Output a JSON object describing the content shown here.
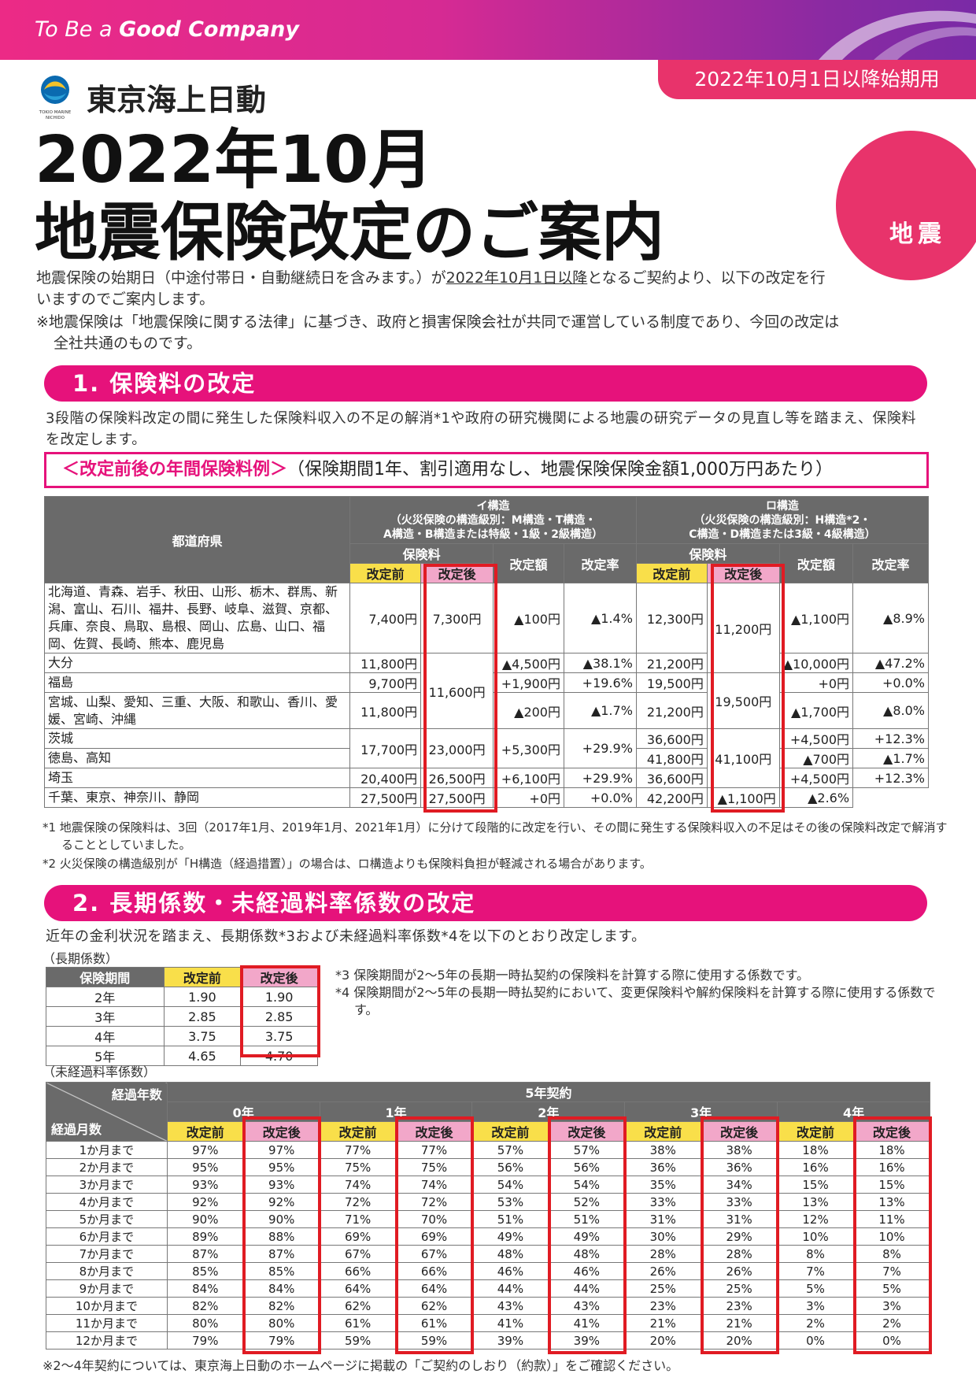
{
  "header": {
    "tagline_pre": "To Be a ",
    "tagline_bold": "Good Company",
    "date_badge": "2022年10月1日以降始期用",
    "company": "東京海上日動",
    "logo_text1": "TOKIO MARINE",
    "logo_text2": "NICHIDO",
    "title_line1": "2022年10月",
    "title_line2": "地震保険改定のご案内",
    "circle_label": "地震"
  },
  "intro": {
    "p1_a": "地震保険の始期日（中途付帯日・自動継続日を含みます。）が",
    "p1_u": "2022年10月1日以降",
    "p1_b": "となるご契約より、以下の改定を行いますのでご案内します。",
    "p2": "※地震保険は「地震保険に関する法律」に基づき、政府と損害保険会社が共同で運営している制度であり、今回の改定は全社共通のものです。"
  },
  "section1": {
    "title": "1. 保険料の改定",
    "body": "3段階の保険料改定の間に発生した保険料収入の不足の解消*1や政府の研究機関による地震の研究データの見直し等を踏まえ、保険料を改定します。",
    "box_pink": "＜改定前後の年間保険料例＞",
    "box_rest": "（保険期間1年、割引適用なし、地震保険保険金額1,000万円あたり）",
    "headers": {
      "pref": "都道府県",
      "i_struct": "イ構造",
      "i_sub1": "（火災保険の構造級別：M構造・T構造・",
      "i_sub2": "A構造・B構造または特級・1級・2級構造）",
      "ro_struct": "ロ構造",
      "ro_sub1": "（火災保険の構造級別：H構造*2・",
      "ro_sub2": "C構造・D構造または3級・4級構造）",
      "premium": "保険料",
      "before": "改定前",
      "after": "改定後",
      "amount": "改定額",
      "rate": "改定率"
    },
    "rows": [
      {
        "pref": "北海道、青森、岩手、秋田、山形、栃木、群馬、新潟、富山、石川、福井、長野、岐阜、滋賀、京都、兵庫、奈良、鳥取、島根、岡山、広島、山口、福岡、佐賀、長崎、熊本、鹿児島",
        "i_before": "7,400円",
        "i_amt": "▲100円",
        "i_rate": "▲1.4%",
        "r_before": "12,300円",
        "r_amt": "▲1,100円",
        "r_rate": "▲8.9%"
      },
      {
        "pref": "大分",
        "i_before": "11,800円",
        "i_amt": "▲4,500円",
        "i_rate": "▲38.1%",
        "r_before": "21,200円",
        "r_amt": "▲10,000円",
        "r_rate": "▲47.2%"
      },
      {
        "pref": "福島",
        "i_before": "9,700円",
        "i_amt": "+1,900円",
        "i_rate": "+19.6%",
        "r_before": "19,500円",
        "r_amt": "+0円",
        "r_rate": "+0.0%"
      },
      {
        "pref": "宮城、山梨、愛知、三重、大阪、和歌山、香川、愛媛、宮崎、沖縄",
        "i_before": "11,800円",
        "i_amt": "▲200円",
        "i_rate": "▲1.7%",
        "r_before": "21,200円",
        "r_amt": "▲1,700円",
        "r_rate": "▲8.0%"
      },
      {
        "pref": "茨城",
        "r_before": "36,600円",
        "r_amt": "+4,500円",
        "r_rate": "+12.3%"
      },
      {
        "pref": "徳島、高知",
        "r_before": "41,800円",
        "r_amt": "▲700円",
        "r_rate": "▲1.7%"
      },
      {
        "pref": "埼玉",
        "i_before": "20,400円",
        "i_after": "26,500円",
        "i_amt": "+6,100円",
        "i_rate": "+29.9%",
        "r_before": "36,600円",
        "r_amt": "+4,500円",
        "r_rate": "+12.3%"
      },
      {
        "pref": "千葉、東京、神奈川、静岡",
        "i_before": "27,500円",
        "i_after": "27,500円",
        "i_amt": "+0円",
        "i_rate": "+0.0%",
        "r_before": "42,200円",
        "r_amt": "▲1,100円",
        "r_rate": "▲2.6%"
      }
    ],
    "merged": {
      "i_after_a": "7,300円",
      "i_after_b": "11,600円",
      "ibaraki_i_before": "17,700円",
      "ibaraki_i_after": "23,000円",
      "ibaraki_i_amt": "+5,300円",
      "ibaraki_i_rate": "+29.9%",
      "r_after_a": "11,200円",
      "r_after_b": "19,500円",
      "r_after_c": "41,100円"
    },
    "fn1_a": "*1 地震保険の保険料は、3回（2017年1月、2019年1月、2021年1月）に分けて段階的に改定を行い、その間に発生する保険料収入の不足はその後の",
    "fn1_b": "保険料改定で解消することとしていました。",
    "fn2": "*2 火災保険の構造級別が「H構造（経過措置）」の場合は、ロ構造よりも保険料負担が軽減される場合があります。"
  },
  "section2": {
    "title": "2. 長期係数・未経過料率係数の改定",
    "body": "近年の金利状況を踏まえ、長期係数*3および未経過料率係数*4を以下のとおり改定します。",
    "long_label": "（長期係数）",
    "long_headers": {
      "period": "保険期間",
      "before": "改定前",
      "after": "改定後"
    },
    "long_rows": [
      {
        "period": "2年",
        "before": "1.90",
        "after": "1.90"
      },
      {
        "period": "3年",
        "before": "2.85",
        "after": "2.85"
      },
      {
        "period": "4年",
        "before": "3.75",
        "after": "3.75"
      },
      {
        "period": "5年",
        "before": "4.65",
        "after": "4.70"
      }
    ],
    "fn3": "*3 保険期間が2〜5年の長期一時払契約の保険料を計算する際に使用する係数です。",
    "fn4_a": "*4 保険期間が2〜5年の長期一時払契約において、変更保険料や解約保険料を計算する際に使用する",
    "fn4_b": "係数です。",
    "unexp_label": "（未経過料率係数）",
    "unexp_headers": {
      "elapsed_years": "経過年数",
      "elapsed_months": "経過月数",
      "contract": "5年契約",
      "years": [
        "0年",
        "1年",
        "2年",
        "3年",
        "4年"
      ],
      "before": "改定前",
      "after": "改定後"
    },
    "unexp_rows": [
      {
        "m": "1か月まで",
        "v": [
          "97%",
          "97%",
          "77%",
          "77%",
          "57%",
          "57%",
          "38%",
          "38%",
          "18%",
          "18%"
        ]
      },
      {
        "m": "2か月まで",
        "v": [
          "95%",
          "95%",
          "75%",
          "75%",
          "56%",
          "56%",
          "36%",
          "36%",
          "16%",
          "16%"
        ]
      },
      {
        "m": "3か月まで",
        "v": [
          "93%",
          "93%",
          "74%",
          "74%",
          "54%",
          "54%",
          "35%",
          "34%",
          "15%",
          "15%"
        ]
      },
      {
        "m": "4か月まで",
        "v": [
          "92%",
          "92%",
          "72%",
          "72%",
          "53%",
          "52%",
          "33%",
          "33%",
          "13%",
          "13%"
        ]
      },
      {
        "m": "5か月まで",
        "v": [
          "90%",
          "90%",
          "71%",
          "70%",
          "51%",
          "51%",
          "31%",
          "31%",
          "12%",
          "11%"
        ]
      },
      {
        "m": "6か月まで",
        "v": [
          "89%",
          "88%",
          "69%",
          "69%",
          "49%",
          "49%",
          "30%",
          "29%",
          "10%",
          "10%"
        ]
      },
      {
        "m": "7か月まで",
        "v": [
          "87%",
          "87%",
          "67%",
          "67%",
          "48%",
          "48%",
          "28%",
          "28%",
          "8%",
          "8%"
        ]
      },
      {
        "m": "8か月まで",
        "v": [
          "85%",
          "85%",
          "66%",
          "66%",
          "46%",
          "46%",
          "26%",
          "26%",
          "7%",
          "7%"
        ]
      },
      {
        "m": "9か月まで",
        "v": [
          "84%",
          "84%",
          "64%",
          "64%",
          "44%",
          "44%",
          "25%",
          "25%",
          "5%",
          "5%"
        ]
      },
      {
        "m": "10か月まで",
        "v": [
          "82%",
          "82%",
          "62%",
          "62%",
          "43%",
          "43%",
          "23%",
          "23%",
          "3%",
          "3%"
        ]
      },
      {
        "m": "11か月まで",
        "v": [
          "80%",
          "80%",
          "61%",
          "61%",
          "41%",
          "41%",
          "21%",
          "21%",
          "2%",
          "2%"
        ]
      },
      {
        "m": "12か月まで",
        "v": [
          "79%",
          "79%",
          "59%",
          "59%",
          "39%",
          "39%",
          "20%",
          "20%",
          "0%",
          "0%"
        ]
      }
    ],
    "bottom_note": "※2〜4年契約については、東京海上日動のホームページに掲載の「ご契約のしおり（約款）」をご確認ください。"
  },
  "colors": {
    "pink": "#e6127b",
    "header_gray": "#6a6a6a",
    "before_yellow": "#f9df4a",
    "after_pink": "#f2a7c9",
    "red_box": "#e01b23"
  }
}
